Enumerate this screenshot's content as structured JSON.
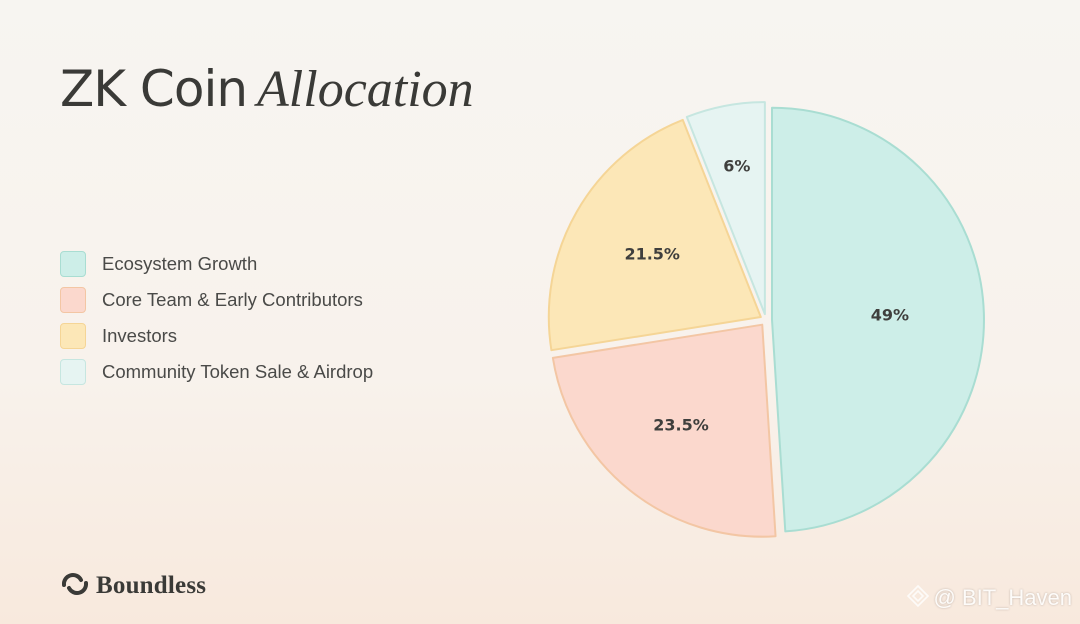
{
  "title": {
    "main": "ZK Coin",
    "accent": "Allocation"
  },
  "colors": {
    "text": "#3a3a37",
    "ecosystem_fill": "#cdeee8",
    "ecosystem_stroke": "#a9ddd2",
    "team_fill": "#fbd8cd",
    "team_stroke": "#f3c6a4",
    "investors_fill": "#fce7b7",
    "investors_stroke": "#f5d596",
    "community_fill": "#e6f4f2",
    "community_stroke": "#c6e6e0"
  },
  "chart_data": {
    "type": "pie",
    "labels": [
      "Ecosystem Growth",
      "Core Team & Early Contributors",
      "Investors",
      "Community Token Sale & Airdrop"
    ],
    "values": [
      49,
      23.5,
      21.5,
      6
    ],
    "value_labels": [
      "49%",
      "23.5%",
      "21.5%",
      "6%"
    ],
    "colors": [
      "#cdeee8",
      "#fbd8cd",
      "#fce7b7",
      "#e6f4f2"
    ],
    "stroke_colors": [
      "#a9ddd2",
      "#f3c6a4",
      "#f5d596",
      "#c6e6e0"
    ],
    "legend_position": "left",
    "exploded": true
  },
  "brand": {
    "logo_icon": "boundless-logo-icon",
    "name": "Boundless"
  },
  "watermark": {
    "icon": "binance-diamond-icon",
    "text": "@ BIT_Haven"
  }
}
